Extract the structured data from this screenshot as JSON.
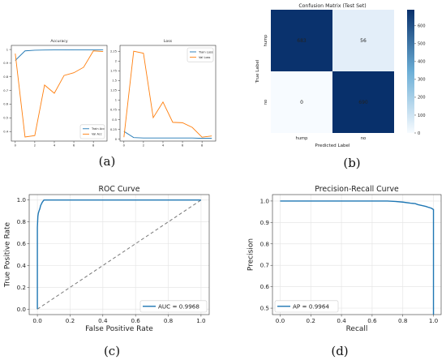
{
  "captions": [
    "(a)",
    "(b)",
    "(c)",
    "(d)"
  ],
  "colors": {
    "blue": "#1f77b4",
    "orange": "#ff7f0e",
    "diag": "#777777",
    "cm_dark": "#08306b",
    "cm_light": "#e6f0fa",
    "cm_mid": "#ffffff"
  },
  "chart_data": [
    {
      "type": "line",
      "title": "Accuracy",
      "x": [
        0,
        1,
        2,
        3,
        4,
        5,
        6,
        7,
        8,
        9
      ],
      "xticks": [
        0,
        2,
        4,
        6,
        8
      ],
      "yticks": [
        0.4,
        0.5,
        0.6,
        0.7,
        0.8,
        0.9,
        1.0
      ],
      "ylim": [
        0.33,
        1.03
      ],
      "series": [
        {
          "name": "Train Acc",
          "color": "#1f77b4",
          "values": [
            0.92,
            0.99,
            0.995,
            0.996,
            0.997,
            0.997,
            0.998,
            0.998,
            0.998,
            0.998
          ]
        },
        {
          "name": "Val Acc",
          "color": "#ff7f0e",
          "values": [
            0.97,
            0.36,
            0.37,
            0.74,
            0.68,
            0.81,
            0.83,
            0.87,
            0.99,
            0.985
          ]
        }
      ],
      "legend": "bottom-right"
    },
    {
      "type": "line",
      "title": "Loss",
      "x": [
        0,
        1,
        2,
        3,
        4,
        5,
        6,
        7,
        8,
        9
      ],
      "xticks": [
        0,
        2,
        4,
        6,
        8
      ],
      "yticks": [
        0.0,
        0.25,
        0.5,
        0.75,
        1.0,
        1.25,
        1.5,
        1.75,
        2.0,
        2.25
      ],
      "ylim": [
        -0.05,
        2.4
      ],
      "series": [
        {
          "name": "Train Loss",
          "color": "#1f77b4",
          "values": [
            0.2,
            0.04,
            0.03,
            0.03,
            0.03,
            0.03,
            0.03,
            0.03,
            0.02,
            0.02
          ]
        },
        {
          "name": "Val Loss",
          "color": "#ff7f0e",
          "values": [
            0.05,
            2.25,
            2.2,
            0.55,
            0.95,
            0.43,
            0.42,
            0.3,
            0.05,
            0.08
          ]
        }
      ],
      "legend": "top-right"
    },
    {
      "type": "heatmap",
      "title": "Confusion Matrix (Test Set)",
      "xlabel": "Predicted Label",
      "ylabel": "True Label",
      "x_categories": [
        "hump",
        "no"
      ],
      "y_categories": [
        "hump",
        "no"
      ],
      "matrix": [
        [
          683,
          56
        ],
        [
          0,
          690
        ]
      ],
      "colorbar_ticks": [
        0,
        100,
        200,
        300,
        400,
        500,
        600
      ]
    },
    {
      "type": "line",
      "title": "ROC Curve",
      "xlabel": "False Positive Rate",
      "ylabel": "True Positive Rate",
      "xticks": [
        "0.0",
        "0.2",
        "0.4",
        "0.6",
        "0.8",
        "1.0"
      ],
      "yticks": [
        "0.0",
        "0.2",
        "0.4",
        "0.6",
        "0.8",
        "1.0"
      ],
      "xlim": [
        -0.05,
        1.05
      ],
      "ylim": [
        -0.05,
        1.05
      ],
      "series": [
        {
          "name": "AUC = 0.9968",
          "color": "#1f77b4",
          "x": [
            0,
            0,
            0.003,
            0.006,
            0.01,
            0.015,
            0.02,
            0.03,
            0.04,
            0.06,
            0.1,
            0.3,
            0.6,
            1.0
          ],
          "y": [
            0,
            0.75,
            0.85,
            0.88,
            0.9,
            0.92,
            0.95,
            0.98,
            1.0,
            1.0,
            1.0,
            1.0,
            1.0,
            1.0
          ]
        }
      ],
      "legend": "bottom-right"
    },
    {
      "type": "line",
      "title": "Precision-Recall Curve",
      "xlabel": "Recall",
      "ylabel": "Precision",
      "xticks": [
        "0.0",
        "0.2",
        "0.4",
        "0.6",
        "0.8",
        "1.0"
      ],
      "yticks": [
        "0.5",
        "0.6",
        "0.7",
        "0.8",
        "0.9",
        "1.0"
      ],
      "xlim": [
        -0.05,
        1.05
      ],
      "ylim": [
        0.47,
        1.03
      ],
      "series": [
        {
          "name": "AP = 0.9964",
          "color": "#1f77b4",
          "x": [
            0,
            0.2,
            0.4,
            0.6,
            0.7,
            0.75,
            0.8,
            0.85,
            0.88,
            0.9,
            0.93,
            0.95,
            0.97,
            0.98,
            0.99,
            1.0,
            1.0
          ],
          "y": [
            1.0,
            1.0,
            1.0,
            1.0,
            1.0,
            0.998,
            0.995,
            0.99,
            0.988,
            0.983,
            0.978,
            0.975,
            0.97,
            0.968,
            0.965,
            0.96,
            0.47
          ]
        }
      ],
      "legend": "bottom-left"
    }
  ]
}
